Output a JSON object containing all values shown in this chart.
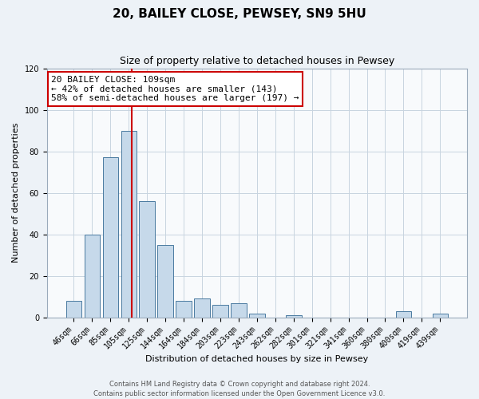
{
  "title": "20, BAILEY CLOSE, PEWSEY, SN9 5HU",
  "subtitle": "Size of property relative to detached houses in Pewsey",
  "xlabel": "Distribution of detached houses by size in Pewsey",
  "ylabel": "Number of detached properties",
  "bar_labels": [
    "46sqm",
    "66sqm",
    "85sqm",
    "105sqm",
    "125sqm",
    "144sqm",
    "164sqm",
    "184sqm",
    "203sqm",
    "223sqm",
    "243sqm",
    "262sqm",
    "282sqm",
    "301sqm",
    "321sqm",
    "341sqm",
    "360sqm",
    "380sqm",
    "400sqm",
    "419sqm",
    "439sqm"
  ],
  "bar_values": [
    8,
    40,
    77,
    90,
    56,
    35,
    8,
    9,
    6,
    7,
    2,
    0,
    1,
    0,
    0,
    0,
    0,
    0,
    3,
    0,
    2
  ],
  "bar_color": "#c6d9ea",
  "bar_edge_color": "#4a7aa0",
  "ylim": [
    0,
    120
  ],
  "yticks": [
    0,
    20,
    40,
    60,
    80,
    100,
    120
  ],
  "ref_line_color": "#cc0000",
  "ref_line_x": 3.18,
  "annotation_line1": "20 BAILEY CLOSE: 109sqm",
  "annotation_line2": "← 42% of detached houses are smaller (143)",
  "annotation_line3": "58% of semi-detached houses are larger (197) →",
  "annotation_box_edge_color": "#cc0000",
  "footnote_line1": "Contains HM Land Registry data © Crown copyright and database right 2024.",
  "footnote_line2": "Contains public sector information licensed under the Open Government Licence v3.0.",
  "background_color": "#edf2f7",
  "plot_bg_color": "#f8fafc",
  "grid_color": "#c8d4e0",
  "title_fontsize": 11,
  "subtitle_fontsize": 9,
  "axis_label_fontsize": 8,
  "tick_fontsize": 7,
  "annot_fontsize": 8,
  "footnote_fontsize": 6
}
